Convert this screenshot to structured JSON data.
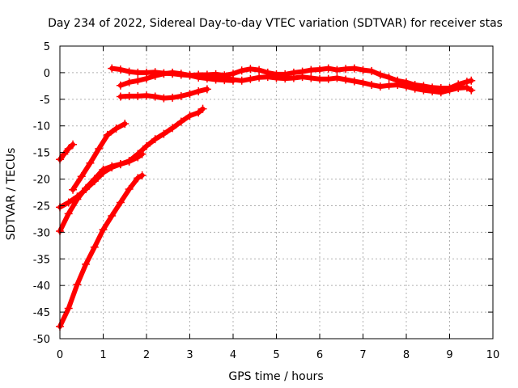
{
  "chart_data": {
    "type": "scatter",
    "title": "Day 234 of 2022, Sidereal Day-to-day VTEC variation (SDTVAR) for receiver stas",
    "xlabel": "GPS time / hours",
    "ylabel": "SDTVAR / TECUs",
    "xlim": [
      0,
      10
    ],
    "ylim": [
      -50,
      5
    ],
    "xticks": [
      "0",
      "1",
      "2",
      "3",
      "4",
      "5",
      "6",
      "7",
      "8",
      "9",
      "10"
    ],
    "yticks": [
      "5",
      "0",
      "-5",
      "-10",
      "-15",
      "-20",
      "-25",
      "-30",
      "-35",
      "-40",
      "-45",
      "-50"
    ],
    "grid": true,
    "marker_color": "#ff0000",
    "series": [
      {
        "x": [
          0.0,
          0.1,
          0.2,
          0.3
        ],
        "y": [
          -16.3,
          -15.3,
          -14.3,
          -13.5
        ]
      },
      {
        "x": [
          0.3,
          0.5,
          0.7,
          0.9,
          1.1,
          1.3,
          1.5
        ],
        "y": [
          -22.0,
          -19.5,
          -17.0,
          -14.3,
          -11.7,
          -10.5,
          -9.6
        ]
      },
      {
        "x": [
          0.0,
          0.2,
          0.4,
          0.6,
          0.8,
          1.0,
          1.2,
          1.4,
          1.6,
          1.8,
          2.0,
          2.2,
          2.4,
          2.6,
          2.8,
          3.0,
          3.2,
          3.3
        ],
        "y": [
          -25.3,
          -24.4,
          -23.3,
          -21.9,
          -20.4,
          -18.8,
          -17.8,
          -17.2,
          -16.6,
          -15.3,
          -13.8,
          -12.5,
          -11.5,
          -10.4,
          -9.2,
          -8.1,
          -7.5,
          -6.8
        ]
      },
      {
        "x": [
          0.0,
          0.2,
          0.4,
          0.6,
          0.8,
          1.0,
          1.2,
          1.4,
          1.6,
          1.8,
          1.9
        ],
        "y": [
          -29.8,
          -26.5,
          -23.8,
          -21.7,
          -20.0,
          -18.2,
          -17.6,
          -17.2,
          -16.7,
          -15.9,
          -15.3
        ]
      },
      {
        "x": [
          0.0,
          0.2,
          0.4,
          0.6,
          0.8,
          1.0,
          1.2,
          1.4,
          1.6,
          1.8,
          1.9
        ],
        "y": [
          -47.7,
          -44.3,
          -39.8,
          -36.0,
          -32.8,
          -29.5,
          -26.9,
          -24.4,
          -21.9,
          -19.8,
          -19.3
        ]
      },
      {
        "x": [
          1.4,
          1.6,
          1.8,
          2.0,
          2.2,
          2.4,
          2.6,
          2.8,
          3.0,
          3.2,
          3.4
        ],
        "y": [
          -4.5,
          -4.4,
          -4.4,
          -4.3,
          -4.5,
          -4.8,
          -4.7,
          -4.4,
          -4.0,
          -3.5,
          -3.1
        ]
      },
      {
        "x": [
          1.4,
          1.6,
          1.8,
          2.0,
          2.2,
          2.4,
          2.6,
          2.8,
          3.0,
          3.2,
          3.4,
          3.6,
          3.8,
          4.0
        ],
        "y": [
          -2.4,
          -1.8,
          -1.5,
          -1.1,
          -0.6,
          -0.2,
          0.0,
          -0.2,
          -0.5,
          -0.9,
          -1.1,
          -1.3,
          -1.4,
          -1.5
        ]
      },
      {
        "x": [
          1.2,
          1.4,
          1.6,
          1.8,
          2.0,
          2.2,
          2.4,
          2.6,
          2.8,
          3.0,
          3.2,
          3.4,
          3.6,
          3.8,
          4.0,
          4.2,
          4.4,
          4.6,
          4.8,
          5.0,
          5.2,
          5.4,
          5.6,
          5.8,
          6.0,
          6.2,
          6.4,
          6.6,
          6.8,
          7.0,
          7.2,
          7.4,
          7.6,
          7.8,
          8.0,
          8.2,
          8.4,
          8.6,
          8.8,
          9.0,
          9.2,
          9.4,
          9.5
        ],
        "y": [
          0.8,
          0.6,
          0.2,
          0.0,
          0.0,
          0.1,
          -0.1,
          -0.2,
          -0.4,
          -0.5,
          -0.4,
          -0.4,
          -0.3,
          -0.5,
          -0.2,
          0.4,
          0.7,
          0.5,
          0.0,
          -0.3,
          -0.3,
          0.0,
          0.2,
          0.5,
          0.6,
          0.8,
          0.5,
          0.7,
          0.8,
          0.5,
          0.3,
          -0.4,
          -0.9,
          -1.5,
          -1.8,
          -2.3,
          -2.5,
          -2.8,
          -2.9,
          -2.9,
          -2.2,
          -1.7,
          -1.5
        ]
      },
      {
        "x": [
          3.6,
          3.8,
          4.0,
          4.2,
          4.4,
          4.6,
          4.8,
          5.0,
          5.2,
          5.4,
          5.6,
          5.8,
          6.0,
          6.2,
          6.4,
          6.6,
          6.8,
          7.0,
          7.2,
          7.4,
          7.6,
          7.8,
          8.0,
          8.2,
          8.4,
          8.6,
          8.8,
          9.0,
          9.2,
          9.4,
          9.5
        ],
        "y": [
          -0.8,
          -1.0,
          -1.3,
          -1.5,
          -1.2,
          -0.9,
          -0.8,
          -1.0,
          -1.1,
          -1.0,
          -0.8,
          -1.0,
          -1.2,
          -1.2,
          -1.0,
          -1.3,
          -1.6,
          -1.9,
          -2.3,
          -2.6,
          -2.4,
          -2.3,
          -2.6,
          -3.0,
          -3.3,
          -3.5,
          -3.7,
          -3.3,
          -2.9,
          -2.8,
          -3.3
        ]
      }
    ]
  }
}
